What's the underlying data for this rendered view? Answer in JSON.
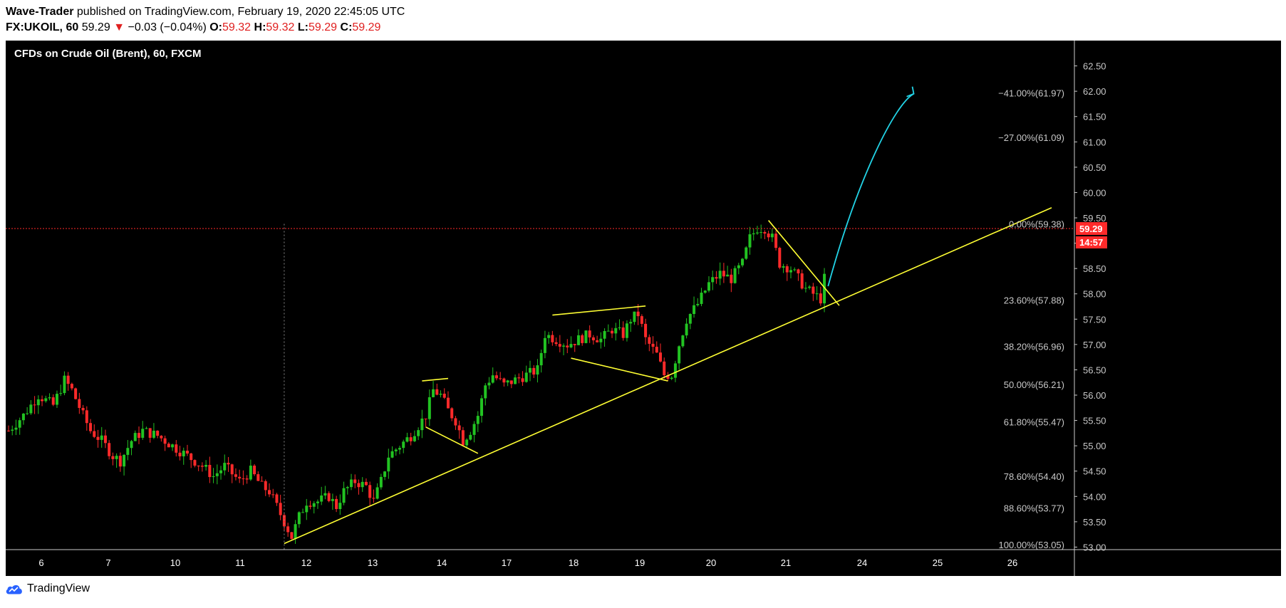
{
  "header": {
    "author": "Wave-Trader",
    "published_text": "published on TradingView.com, February 19, 2020 22:45:05 UTC",
    "symbol": "FX:UKOIL, 60",
    "last": "59.29",
    "arrow": "▼",
    "change": "−0.03 (−0.04%)",
    "o_label": "O:",
    "o_value": "59.32",
    "h_label": "H:",
    "h_value": "59.32",
    "l_label": "L:",
    "l_value": "59.29",
    "c_label": "C:",
    "c_value": "59.29"
  },
  "footer": {
    "brand": "TradingView",
    "logo_icon": "tradingview-cloud-icon"
  },
  "colors": {
    "up": "#22c322",
    "down": "#ff2a2a",
    "trend": "#ffff33",
    "arrow": "#22d3e6",
    "axis_text": "#c8c8c8",
    "price_tag": "#ff2a2a"
  },
  "chart_data": {
    "type": "candlestick",
    "title": "CFDs on Crude Oil (Brent), 60, FXCM",
    "x_ticks": [
      "6",
      "7",
      "10",
      "11",
      "12",
      "13",
      "14",
      "17",
      "18",
      "19",
      "20",
      "21",
      "24",
      "25",
      "26"
    ],
    "y_ticks": [
      "53.00",
      "53.50",
      "54.00",
      "54.50",
      "55.00",
      "55.50",
      "56.00",
      "56.50",
      "57.00",
      "57.50",
      "58.00",
      "58.50",
      "59.00",
      "59.50",
      "60.00",
      "60.50",
      "61.00",
      "61.50",
      "62.00",
      "62.50"
    ],
    "ylim": [
      52.95,
      63.0
    ],
    "last_price": {
      "value": 59.29,
      "label": "59.29",
      "countdown": "14:57"
    },
    "fib_levels": [
      {
        "label": "−41.00%(61.97)",
        "price": 61.97
      },
      {
        "label": "−27.00%(61.09)",
        "price": 61.09
      },
      {
        "label": "0.00%(59.38)",
        "price": 59.38
      },
      {
        "label": "23.60%(57.88)",
        "price": 57.88
      },
      {
        "label": "38.20%(56.96)",
        "price": 56.96
      },
      {
        "label": "50.00%(56.21)",
        "price": 56.21
      },
      {
        "label": "61.80%(55.47)",
        "price": 55.47
      },
      {
        "label": "78.60%(54.40)",
        "price": 54.4
      },
      {
        "label": "88.60%(53.77)",
        "price": 53.77
      },
      {
        "label": "100.00%(53.05)",
        "price": 53.05
      }
    ],
    "path_points": [
      [
        0,
        55.3
      ],
      [
        4,
        55.6
      ],
      [
        8,
        56.0
      ],
      [
        12,
        55.8
      ],
      [
        15,
        56.3
      ],
      [
        17,
        56.1
      ],
      [
        20,
        55.6
      ],
      [
        22,
        55.3
      ],
      [
        25,
        55.1
      ],
      [
        28,
        54.8
      ],
      [
        30,
        54.7
      ],
      [
        33,
        55.1
      ],
      [
        36,
        55.3
      ],
      [
        40,
        55.2
      ],
      [
        44,
        55.0
      ],
      [
        48,
        54.8
      ],
      [
        52,
        54.6
      ],
      [
        55,
        54.4
      ],
      [
        58,
        54.6
      ],
      [
        62,
        54.3
      ],
      [
        65,
        54.5
      ],
      [
        68,
        54.2
      ],
      [
        70,
        54.1
      ],
      [
        72,
        53.8
      ],
      [
        74,
        53.5
      ],
      [
        76,
        53.2
      ],
      [
        78,
        53.6
      ],
      [
        80,
        53.9
      ],
      [
        83,
        53.9
      ],
      [
        86,
        54.0
      ],
      [
        88,
        53.8
      ],
      [
        90,
        54.1
      ],
      [
        93,
        54.3
      ],
      [
        96,
        54.2
      ],
      [
        98,
        53.9
      ],
      [
        100,
        54.3
      ],
      [
        102,
        54.8
      ],
      [
        105,
        55.0
      ],
      [
        108,
        55.2
      ],
      [
        110,
        55.4
      ],
      [
        112,
        55.6
      ],
      [
        114,
        56.1
      ],
      [
        116,
        56.0
      ],
      [
        118,
        55.7
      ],
      [
        120,
        55.5
      ],
      [
        122,
        55.1
      ],
      [
        124,
        55.3
      ],
      [
        126,
        55.6
      ],
      [
        128,
        56.2
      ],
      [
        130,
        56.4
      ],
      [
        133,
        56.2
      ],
      [
        136,
        56.3
      ],
      [
        139,
        56.4
      ],
      [
        142,
        56.5
      ],
      [
        144,
        57.2
      ],
      [
        147,
        57.1
      ],
      [
        150,
        57.0
      ],
      [
        153,
        57.1
      ],
      [
        156,
        57.2
      ],
      [
        159,
        57.1
      ],
      [
        162,
        57.3
      ],
      [
        165,
        57.2
      ],
      [
        167,
        57.5
      ],
      [
        169,
        57.6
      ],
      [
        171,
        57.1
      ],
      [
        174,
        56.8
      ],
      [
        176,
        56.4
      ],
      [
        178,
        56.4
      ],
      [
        180,
        57.0
      ],
      [
        182,
        57.5
      ],
      [
        185,
        57.8
      ],
      [
        188,
        58.2
      ],
      [
        191,
        58.4
      ],
      [
        194,
        58.3
      ],
      [
        197,
        58.6
      ],
      [
        199,
        59.1
      ],
      [
        201,
        59.3
      ],
      [
        203,
        59.3
      ],
      [
        205,
        59.1
      ],
      [
        207,
        58.6
      ],
      [
        210,
        58.5
      ],
      [
        212,
        58.3
      ],
      [
        214,
        58.1
      ],
      [
        216,
        58.0
      ],
      [
        218,
        57.9
      ],
      [
        219,
        58.3
      ]
    ],
    "lines": [
      {
        "name": "trendline",
        "color": "#ffff33",
        "p1": [
          74,
          53.07
        ],
        "p2": [
          280,
          59.7
        ]
      },
      {
        "name": "flag1-top",
        "color": "#ffff33",
        "p1": [
          111,
          56.28
        ],
        "p2": [
          118,
          56.33
        ]
      },
      {
        "name": "flag1-bottom",
        "color": "#ffff33",
        "p1": [
          112,
          55.37
        ],
        "p2": [
          126,
          54.85
        ]
      },
      {
        "name": "flag2-top",
        "color": "#ffff33",
        "p1": [
          146,
          57.58
        ],
        "p2": [
          171,
          57.76
        ]
      },
      {
        "name": "flag2-bottom",
        "color": "#ffff33",
        "p1": [
          151,
          56.73
        ],
        "p2": [
          177,
          56.28
        ]
      },
      {
        "name": "flag3-top",
        "color": "#ffff33",
        "p1": [
          204,
          59.45
        ],
        "p2": [
          223,
          57.77
        ]
      }
    ],
    "arrow_path": {
      "color": "#22d3e6",
      "points": [
        [
          220,
          58.15
        ],
        [
          228,
          60.3
        ],
        [
          238,
          61.75
        ],
        [
          243,
          61.95
        ]
      ]
    },
    "grid": false
  }
}
